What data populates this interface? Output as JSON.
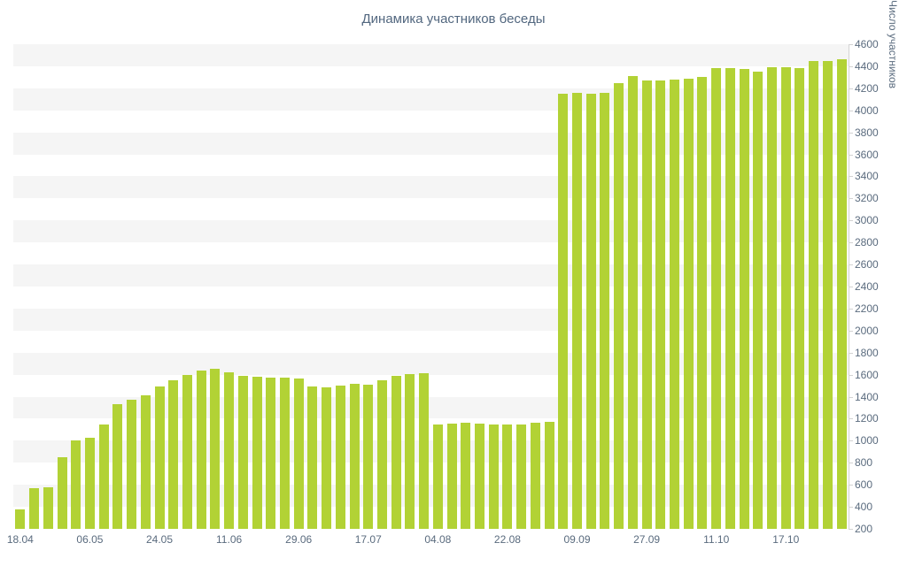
{
  "chart_data": {
    "type": "bar",
    "title": "Динамика участников беседы",
    "ylabel": "Число участников",
    "xlabel": "",
    "ylim": [
      200,
      4600
    ],
    "y_tick_step": 200,
    "y_ticks": [
      200,
      400,
      600,
      800,
      1000,
      1200,
      1400,
      1600,
      1800,
      2000,
      2200,
      2400,
      2600,
      2800,
      3000,
      3200,
      3400,
      3600,
      3800,
      4000,
      4200,
      4400,
      4600
    ],
    "x_tick_labels": [
      "18.04",
      "06.05",
      "24.05",
      "11.06",
      "29.06",
      "17.07",
      "04.08",
      "22.08",
      "09.09",
      "27.09",
      "11.10",
      "17.10"
    ],
    "x_tick_indices": [
      0,
      5,
      10,
      15,
      20,
      25,
      30,
      35,
      40,
      45,
      50,
      55
    ],
    "values": [
      380,
      570,
      580,
      850,
      1000,
      1030,
      1150,
      1330,
      1370,
      1415,
      1490,
      1550,
      1600,
      1640,
      1650,
      1620,
      1590,
      1580,
      1575,
      1570,
      1565,
      1490,
      1485,
      1500,
      1515,
      1505,
      1550,
      1590,
      1605,
      1610,
      1150,
      1155,
      1160,
      1155,
      1150,
      1145,
      1150,
      1160,
      1170,
      4150,
      4160,
      4150,
      4155,
      4250,
      4310,
      4270,
      4270,
      4280,
      4290,
      4300,
      4380,
      4380,
      4375,
      4350,
      4390,
      4395,
      4385,
      4450,
      4450,
      4460
    ],
    "legend": "none",
    "grid": "horizontal-bands",
    "colors": {
      "bar": "#b2d235",
      "band": "#f5f5f5",
      "title_text": "#52677f",
      "tick_text": "#5a6b7e",
      "axis_line": "#d3d3d3",
      "background": "#ffffff"
    }
  }
}
